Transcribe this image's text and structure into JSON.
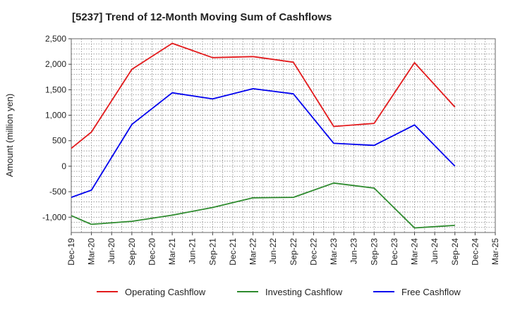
{
  "chart_data": {
    "type": "line",
    "title": "[5237]  Trend of 12-Month Moving Sum of Cashflows",
    "ylabel": "Amount (million yen)",
    "xlabel": "",
    "categories": [
      "Dec-19",
      "Mar-20",
      "Jun-20",
      "Sep-20",
      "Dec-20",
      "Mar-21",
      "Jun-21",
      "Sep-21",
      "Dec-21",
      "Mar-22",
      "Jun-22",
      "Sep-22",
      "Dec-22",
      "Mar-23",
      "Jun-23",
      "Sep-23",
      "Dec-23",
      "Mar-24",
      "Jun-24",
      "Sep-24",
      "Dec-24",
      "Mar-25"
    ],
    "yticks": [
      "2,500",
      "2,000",
      "1,500",
      "1,000",
      "500",
      "0",
      "-500",
      "-1,000"
    ],
    "ylim": [
      -1300,
      2500
    ],
    "grid": true,
    "legend_position": "bottom",
    "series": [
      {
        "name": "Operating Cashflow",
        "color": "#e31a1c",
        "points": [
          [
            0,
            350
          ],
          [
            1,
            670
          ],
          [
            3,
            1900
          ],
          [
            5,
            2410
          ],
          [
            7,
            2130
          ],
          [
            9,
            2150
          ],
          [
            11,
            2040
          ],
          [
            13,
            780
          ],
          [
            15,
            840
          ],
          [
            17,
            2030
          ],
          [
            19,
            1160
          ]
        ]
      },
      {
        "name": "Investing Cashflow",
        "color": "#2e8b2e",
        "points": [
          [
            0,
            -970
          ],
          [
            1,
            -1140
          ],
          [
            3,
            -1080
          ],
          [
            5,
            -960
          ],
          [
            7,
            -810
          ],
          [
            9,
            -620
          ],
          [
            11,
            -610
          ],
          [
            13,
            -330
          ],
          [
            15,
            -430
          ],
          [
            17,
            -1210
          ],
          [
            19,
            -1160
          ]
        ]
      },
      {
        "name": "Free Cashflow",
        "color": "#0000ee",
        "points": [
          [
            0,
            -610
          ],
          [
            1,
            -470
          ],
          [
            3,
            820
          ],
          [
            5,
            1440
          ],
          [
            7,
            1320
          ],
          [
            9,
            1520
          ],
          [
            11,
            1420
          ],
          [
            13,
            450
          ],
          [
            15,
            410
          ],
          [
            17,
            810
          ],
          [
            19,
            0
          ]
        ]
      }
    ]
  }
}
